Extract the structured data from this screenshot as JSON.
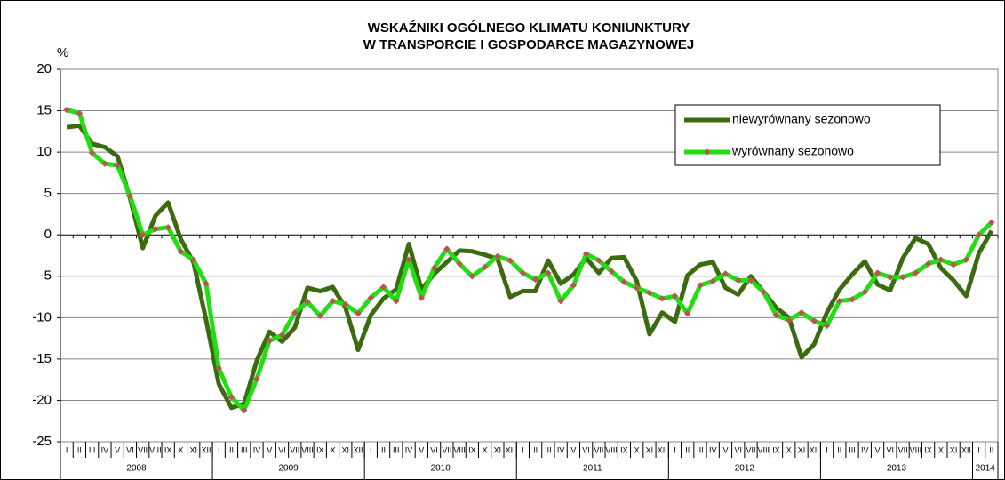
{
  "chart_data": {
    "type": "line",
    "title": [
      "WSKAŹNIKI OGÓLNEGO KLIMATU KONIUNKTURY",
      "W TRANSPORCIE I GOSPODARCE MAGAZYNOWEJ"
    ],
    "y_label": "%",
    "categories": [
      "I",
      "II",
      "III",
      "IV",
      "V",
      "VI",
      "VII",
      "VIII",
      "IX",
      "X",
      "XI",
      "XII",
      "I",
      "II",
      "III",
      "IV",
      "V",
      "VI",
      "VII",
      "VIII",
      "IX",
      "X",
      "XI",
      "XII",
      "I",
      "II",
      "III",
      "IV",
      "V",
      "VI",
      "VII",
      "VIII",
      "IX",
      "X",
      "XI",
      "XII",
      "I",
      "II",
      "III",
      "IV",
      "V",
      "VI",
      "VII",
      "VIII",
      "IX",
      "X",
      "XI",
      "XII",
      "I",
      "II",
      "III",
      "IV",
      "V",
      "VI",
      "VII",
      "VIII",
      "IX",
      "X",
      "XI",
      "XII",
      "I",
      "II",
      "III",
      "IV",
      "V",
      "VI",
      "VII",
      "VIII",
      "IX",
      "X",
      "XI",
      "XII",
      "I",
      "II"
    ],
    "years": [
      "2008",
      "2009",
      "2010",
      "2011",
      "2012",
      "2013",
      "2014"
    ],
    "series": [
      {
        "name": "niewyrównany sezonowo",
        "color": "#3a6b0e",
        "marker": false,
        "values": [
          13.0,
          13.2,
          11.0,
          10.6,
          9.5,
          4.4,
          -1.6,
          2.3,
          3.9,
          -0.5,
          -3.3,
          -10.3,
          -18.0,
          -20.9,
          -20.4,
          -15.2,
          -11.7,
          -12.9,
          -11.2,
          -6.4,
          -6.8,
          -6.3,
          -8.8,
          -13.9,
          -9.7,
          -7.7,
          -6.6,
          -1.1,
          -6.6,
          -4.7,
          -3.3,
          -1.9,
          -2.0,
          -2.4,
          -2.9,
          -7.5,
          -6.8,
          -6.8,
          -3.1,
          -5.9,
          -4.8,
          -2.8,
          -4.6,
          -2.8,
          -2.7,
          -5.6,
          -12.0,
          -9.4,
          -10.5,
          -4.9,
          -3.6,
          -3.3,
          -6.4,
          -7.2,
          -5.0,
          -6.9,
          -8.8,
          -10.0,
          -14.8,
          -13.2,
          -9.4,
          -6.6,
          -4.8,
          -3.2,
          -6.0,
          -6.7,
          -2.8,
          -0.4,
          -1.1,
          -4.0,
          -5.5,
          -7.4,
          -2.2,
          0.5
        ]
      },
      {
        "name": "wyrównany sezonowo",
        "color": "#22dd11",
        "marker": true,
        "marker_color": "#c0504d",
        "values": [
          15.1,
          14.7,
          9.9,
          8.6,
          8.4,
          4.7,
          0.0,
          0.7,
          0.9,
          -2.0,
          -3.0,
          -5.9,
          -16.1,
          -19.6,
          -21.2,
          -17.4,
          -12.8,
          -12.1,
          -9.4,
          -8.1,
          -9.8,
          -8.0,
          -8.4,
          -9.5,
          -7.6,
          -6.3,
          -8.0,
          -3.0,
          -7.6,
          -4.0,
          -1.7,
          -3.5,
          -5.0,
          -3.9,
          -2.6,
          -3.1,
          -4.6,
          -5.4,
          -4.6,
          -8.0,
          -6.1,
          -2.3,
          -3.1,
          -4.4,
          -5.7,
          -6.4,
          -7.0,
          -7.7,
          -7.4,
          -9.5,
          -6.1,
          -5.6,
          -4.7,
          -5.5,
          -5.5,
          -6.9,
          -9.7,
          -10.3,
          -9.4,
          -10.4,
          -11.0,
          -8.0,
          -7.8,
          -6.9,
          -4.6,
          -5.1,
          -5.1,
          -4.6,
          -3.5,
          -3.0,
          -3.6,
          -3.0,
          0.0,
          1.5
        ]
      }
    ],
    "ylim": [
      -25,
      20
    ],
    "yticks": [
      -25,
      -20,
      -15,
      -10,
      -5,
      0,
      5,
      10,
      15,
      20
    ],
    "grid": true,
    "legend": "upper right"
  }
}
